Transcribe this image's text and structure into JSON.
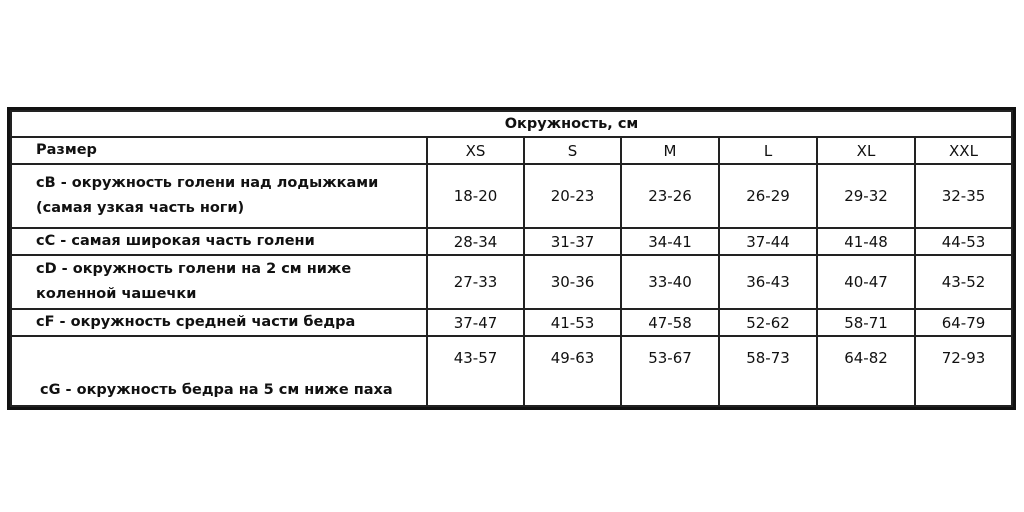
{
  "table": {
    "title": "Окружность, см",
    "header_label": "Размер",
    "sizes": [
      "XS",
      "S",
      "M",
      "L",
      "XL",
      "XXL"
    ],
    "rows": [
      {
        "label": "cB - окружность голени над   лодыжками (самая узкая часть ноги)",
        "values": [
          "18-20",
          "20-23",
          "23-26",
          "26-29",
          "29-32",
          "32-35"
        ]
      },
      {
        "label": "cC - самая широкая часть голени",
        "values": [
          "28-34",
          "31-37",
          "34-41",
          "37-44",
          "41-48",
          "44-53"
        ]
      },
      {
        "label": "cD - окружность голени на 2 см ниже коленной чашечки",
        "values": [
          "27-33",
          "30-36",
          "33-40",
          "36-43",
          "40-47",
          "43-52"
        ]
      },
      {
        "label": "cF - окружность средней части бедра",
        "values": [
          "37-47",
          "41-53",
          "47-58",
          "52-62",
          "58-71",
          "64-79"
        ]
      },
      {
        "label": "cG - окружность бедра на 5 см ниже паха",
        "values": [
          "43-57",
          "49-63",
          "53-67",
          "58-73",
          "64-82",
          "72-93"
        ]
      }
    ]
  }
}
